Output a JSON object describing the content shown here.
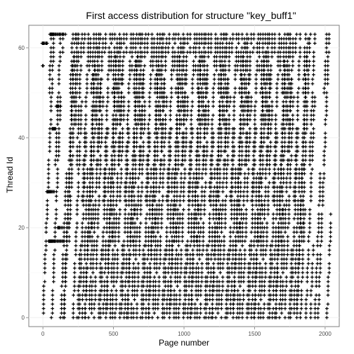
{
  "chart_data": {
    "type": "scatter",
    "title": "First access distribution for structure \"key_buff1\"",
    "xlabel": "Page number",
    "ylabel": "Thread Id",
    "xlim": [
      -100,
      2100
    ],
    "ylim": [
      -2,
      65
    ],
    "x_ticks": [
      0,
      500,
      1000,
      1500,
      2000
    ],
    "x_tick_labels": [
      "0",
      "500",
      "1000",
      "1500",
      "2000"
    ],
    "y_ticks": [
      0,
      20,
      40,
      60
    ],
    "y_tick_labels": [
      "0",
      "20",
      "40",
      "60"
    ],
    "grid": true,
    "marker": "plus",
    "marker_color": "#000000",
    "bands": [
      {
        "x_start": 0,
        "count": 14,
        "step": 40,
        "phase": 0
      },
      {
        "x_start": 45,
        "count": 14,
        "step": 41,
        "phase": 14
      },
      {
        "x_start": 90,
        "count": 13,
        "step": 40,
        "phase": 30
      },
      {
        "x_start": 140,
        "count": 12,
        "step": 39,
        "phase": 5
      },
      {
        "x_start": 185,
        "count": 12,
        "step": 41,
        "phase": 47
      },
      {
        "x_start": 230,
        "count": 11,
        "step": 40,
        "phase": 21
      },
      {
        "x_start": 280,
        "count": 11,
        "step": 39,
        "phase": 38
      },
      {
        "x_start": 330,
        "count": 10,
        "step": 40,
        "phase": 9
      }
    ],
    "point_clusters": [
      {
        "thread": 63,
        "x_values": [
          50,
          55,
          58,
          62,
          66,
          70,
          74,
          78,
          85,
          92,
          100,
          108,
          116,
          125,
          135,
          148,
          160
        ]
      },
      {
        "thread": 61,
        "x_values": [
          -5,
          0,
          5,
          10,
          20,
          25,
          30
        ]
      },
      {
        "thread": 56,
        "x_values": [
          -2,
          2
        ]
      },
      {
        "thread": 47,
        "x_values": [
          95,
          100,
          104,
          108,
          112,
          125
        ]
      },
      {
        "thread": 42,
        "x_values": [
          65,
          70,
          75,
          80,
          85,
          90
        ]
      },
      {
        "thread": 28,
        "x_values": [
          28,
          33,
          38,
          42,
          46,
          52,
          58,
          64,
          72,
          80
        ]
      },
      {
        "thread": 20,
        "x_values": [
          105,
          110,
          115,
          120,
          130,
          140
        ]
      },
      {
        "thread": 17,
        "x_values": [
          40,
          44,
          48,
          52,
          56,
          60,
          64,
          68,
          74,
          80,
          86,
          94,
          102,
          110,
          118,
          126,
          134,
          142,
          150
        ]
      }
    ]
  }
}
